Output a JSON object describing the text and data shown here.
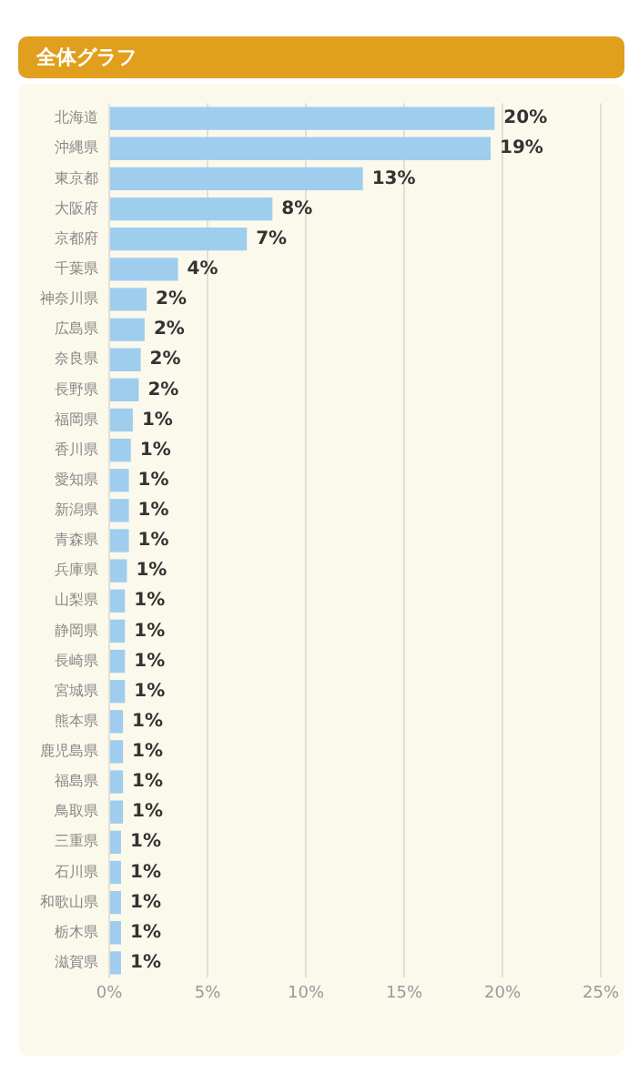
{
  "chart_data": {
    "type": "bar",
    "title": "全体グラフ",
    "orientation": "horizontal",
    "categories": [
      "北海道",
      "沖縄県",
      "東京都",
      "大阪府",
      "京都府",
      "千葉県",
      "神奈川県",
      "広島県",
      "奈良県",
      "長野県",
      "福岡県",
      "香川県",
      "愛知県",
      "新潟県",
      "青森県",
      "兵庫県",
      "山梨県",
      "静岡県",
      "長崎県",
      "宮城県",
      "熊本県",
      "鹿児島県",
      "福島県",
      "鳥取県",
      "三重県",
      "石川県",
      "和歌山県",
      "栃木県",
      "滋賀県"
    ],
    "values": [
      19.6,
      19.4,
      12.9,
      8.3,
      7.0,
      3.5,
      1.9,
      1.8,
      1.6,
      1.5,
      1.2,
      1.1,
      1.0,
      1.0,
      1.0,
      0.9,
      0.8,
      0.8,
      0.8,
      0.8,
      0.7,
      0.7,
      0.7,
      0.7,
      0.6,
      0.6,
      0.6,
      0.6,
      0.6
    ],
    "value_labels": [
      "20%",
      "19%",
      "13%",
      "8%",
      "7%",
      "4%",
      "2%",
      "2%",
      "2%",
      "2%",
      "1%",
      "1%",
      "1%",
      "1%",
      "1%",
      "1%",
      "1%",
      "1%",
      "1%",
      "1%",
      "1%",
      "1%",
      "1%",
      "1%",
      "1%",
      "1%",
      "1%",
      "1%",
      "1%"
    ],
    "color": "#9fcdee",
    "xlim": [
      0,
      25
    ],
    "xticks": [
      {
        "value": 0,
        "label": "0%"
      },
      {
        "value": 5,
        "label": "5%"
      },
      {
        "value": 10,
        "label": "10%"
      },
      {
        "value": 15,
        "label": "15%"
      },
      {
        "value": 20,
        "label": "20%"
      },
      {
        "value": 25,
        "label": "25%"
      }
    ],
    "grid": "x"
  }
}
